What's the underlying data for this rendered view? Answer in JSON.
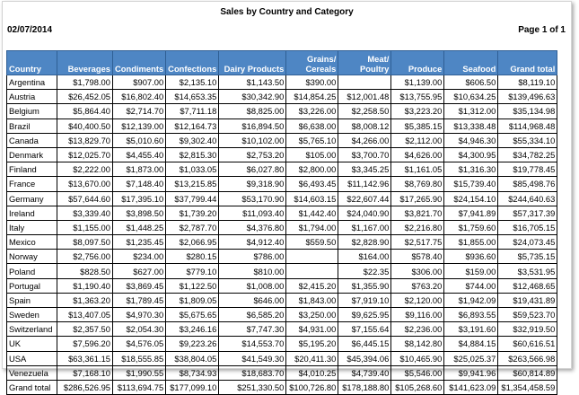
{
  "report": {
    "title": "Sales by Country and Category",
    "date": "02/07/2014",
    "page_label": "Page 1 of 1"
  },
  "table": {
    "headers": [
      {
        "line1": "",
        "line2": "Country"
      },
      {
        "line1": "",
        "line2": "Beverages"
      },
      {
        "line1": "",
        "line2": "Condiments"
      },
      {
        "line1": "",
        "line2": "Confections"
      },
      {
        "line1": "",
        "line2": "Dairy Products"
      },
      {
        "line1": "Grains/",
        "line2": "Cereals"
      },
      {
        "line1": "Meat/",
        "line2": "Poultry"
      },
      {
        "line1": "",
        "line2": "Produce"
      },
      {
        "line1": "",
        "line2": "Seafood"
      },
      {
        "line1": "",
        "line2": "Grand total"
      }
    ],
    "rows": [
      [
        "Argentina",
        "$1,798.00",
        "$907.00",
        "$2,135.10",
        "$1,143.50",
        "$390.00",
        "",
        "$1,139.00",
        "$606.50",
        "$8,119.10"
      ],
      [
        "Austria",
        "$26,452.05",
        "$16,802.40",
        "$14,653.35",
        "$30,342.90",
        "$14,854.25",
        "$12,001.48",
        "$13,755.95",
        "$10,634.25",
        "$139,496.63"
      ],
      [
        "Belgium",
        "$5,864.40",
        "$2,714.70",
        "$7,711.18",
        "$8,825.00",
        "$3,226.00",
        "$2,258.50",
        "$3,223.20",
        "$1,312.00",
        "$35,134.98"
      ],
      [
        "Brazil",
        "$40,400.50",
        "$12,139.00",
        "$12,164.73",
        "$16,894.50",
        "$6,638.00",
        "$8,008.12",
        "$5,385.15",
        "$13,338.48",
        "$114,968.48"
      ],
      [
        "Canada",
        "$13,829.70",
        "$5,010.60",
        "$9,302.40",
        "$10,102.00",
        "$5,765.10",
        "$4,266.00",
        "$2,112.00",
        "$4,946.30",
        "$55,334.10"
      ],
      [
        "Denmark",
        "$12,025.70",
        "$4,455.40",
        "$2,815.30",
        "$2,753.20",
        "$105.00",
        "$3,700.70",
        "$4,626.00",
        "$4,300.95",
        "$34,782.25"
      ],
      [
        "Finland",
        "$2,222.00",
        "$1,873.00",
        "$1,033.05",
        "$6,027.80",
        "$2,800.00",
        "$3,345.25",
        "$1,161.05",
        "$1,316.30",
        "$19,778.45"
      ],
      [
        "France",
        "$13,670.00",
        "$7,148.40",
        "$13,215.85",
        "$9,318.90",
        "$6,493.45",
        "$11,142.96",
        "$8,769.80",
        "$15,739.40",
        "$85,498.76"
      ],
      [
        "Germany",
        "$57,644.60",
        "$17,395.10",
        "$37,799.44",
        "$53,170.90",
        "$14,603.15",
        "$22,607.44",
        "$17,265.90",
        "$24,154.10",
        "$244,640.63"
      ],
      [
        "Ireland",
        "$3,339.40",
        "$3,898.50",
        "$1,739.20",
        "$11,093.40",
        "$1,442.40",
        "$24,040.90",
        "$3,821.70",
        "$7,941.89",
        "$57,317.39"
      ],
      [
        "Italy",
        "$1,155.00",
        "$1,448.25",
        "$2,787.70",
        "$4,376.80",
        "$1,794.00",
        "$1,167.00",
        "$2,216.80",
        "$1,759.60",
        "$16,705.15"
      ],
      [
        "Mexico",
        "$8,097.50",
        "$1,235.45",
        "$2,066.95",
        "$4,912.40",
        "$559.50",
        "$2,828.90",
        "$2,517.75",
        "$1,855.00",
        "$24,073.45"
      ],
      [
        "Norway",
        "$2,756.00",
        "$234.00",
        "$280.15",
        "$786.00",
        "",
        "$164.00",
        "$578.40",
        "$936.60",
        "$5,735.15"
      ],
      [
        "Poland",
        "$828.50",
        "$627.00",
        "$779.10",
        "$810.00",
        "",
        "$22.35",
        "$306.00",
        "$159.00",
        "$3,531.95"
      ],
      [
        "Portugal",
        "$1,190.40",
        "$3,869.45",
        "$1,122.50",
        "$1,008.00",
        "$2,415.20",
        "$1,355.90",
        "$763.20",
        "$744.00",
        "$12,468.65"
      ],
      [
        "Spain",
        "$1,363.20",
        "$1,789.45",
        "$1,809.05",
        "$646.00",
        "$1,843.00",
        "$7,919.10",
        "$2,120.00",
        "$1,942.09",
        "$19,431.89"
      ],
      [
        "Sweden",
        "$13,407.05",
        "$4,970.30",
        "$5,675.65",
        "$6,585.20",
        "$3,250.00",
        "$9,625.95",
        "$9,116.00",
        "$6,893.55",
        "$59,523.70"
      ],
      [
        "Switzerland",
        "$2,357.50",
        "$2,054.30",
        "$3,246.16",
        "$7,747.30",
        "$4,931.00",
        "$7,155.64",
        "$2,236.00",
        "$3,191.60",
        "$32,919.50"
      ],
      [
        "UK",
        "$7,596.20",
        "$4,576.05",
        "$9,223.26",
        "$14,553.70",
        "$5,195.20",
        "$6,445.15",
        "$8,142.80",
        "$4,884.15",
        "$60,616.51"
      ],
      [
        "USA",
        "$63,361.15",
        "$18,555.85",
        "$38,804.05",
        "$41,549.30",
        "$20,411.30",
        "$45,394.06",
        "$10,465.90",
        "$25,025.37",
        "$263,566.98"
      ],
      [
        "Venezuela",
        "$7,168.10",
        "$1,990.55",
        "$8,734.93",
        "$18,683.70",
        "$4,010.25",
        "$4,739.40",
        "$5,546.00",
        "$9,941.96",
        "$60,814.89"
      ],
      [
        "Grand total",
        "$286,526.95",
        "$113,694.75",
        "$177,099.10",
        "$251,330.50",
        "$100,726.80",
        "$178,188.80",
        "$105,268.60",
        "$141,623.09",
        "$1,354,458.59"
      ]
    ]
  },
  "colors": {
    "header_bg": "#4e86c4",
    "header_text": "#ffffff"
  }
}
